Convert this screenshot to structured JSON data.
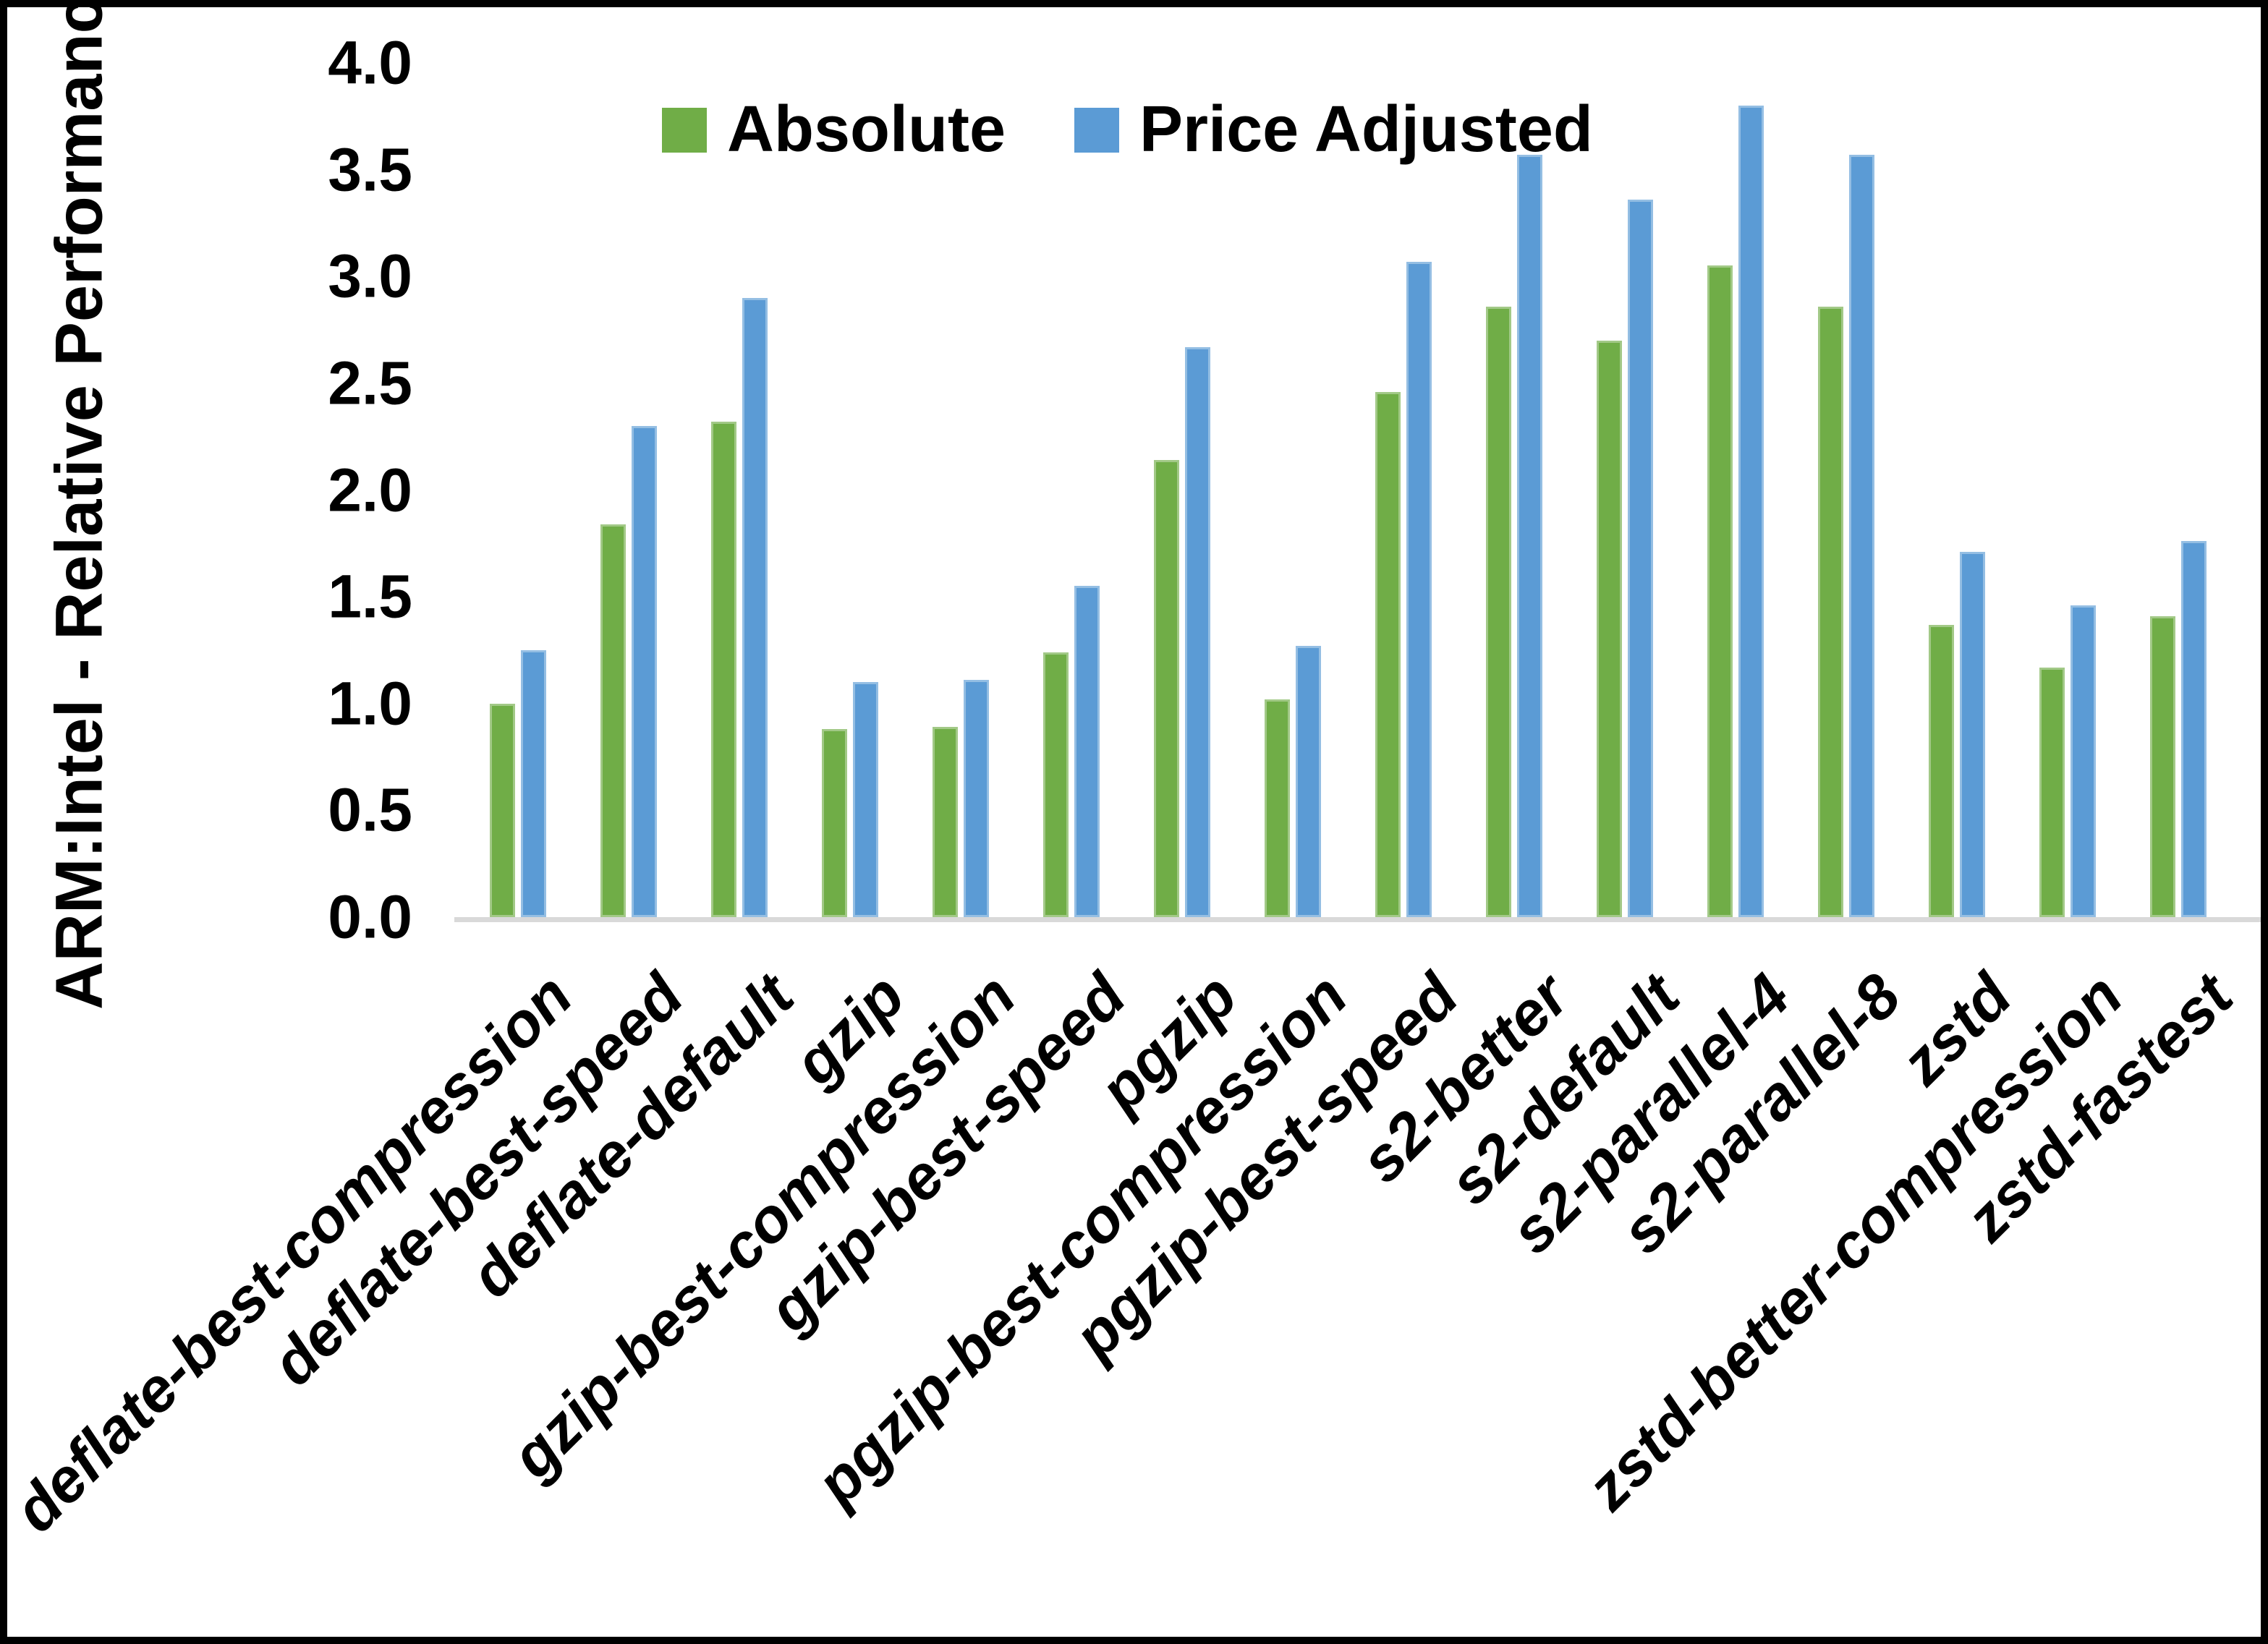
{
  "chart_data": {
    "type": "bar",
    "title": "",
    "xlabel": "",
    "ylabel": "ARM:Intel - Relative Performance",
    "ylim": [
      0.0,
      4.0
    ],
    "ytick_step": 0.5,
    "ytick_labels": [
      "0.0",
      "0.5",
      "1.0",
      "1.5",
      "2.0",
      "2.5",
      "3.0",
      "3.5",
      "4.0"
    ],
    "grid": false,
    "legend_position": "top",
    "categories": [
      "deflate-best-compression",
      "deflate-best-speed",
      "deflate-default",
      "gzip",
      "gzip-best-compression",
      "gzip-best-speed",
      "pgzip",
      "pgzip-best-compression",
      "pgzip-best-speed",
      "s2-better",
      "s2-default",
      "s2-parallel-4",
      "s2-parallel-8",
      "zstd",
      "zstd-better-compression",
      "zstd-fastest"
    ],
    "series": [
      {
        "name": "Absolute",
        "color": "#70AD47",
        "values": [
          1.0,
          1.84,
          2.32,
          0.88,
          0.89,
          1.24,
          2.14,
          1.02,
          2.46,
          2.86,
          2.7,
          3.05,
          2.86,
          1.37,
          1.17,
          1.41
        ]
      },
      {
        "name": "Price Adjusted",
        "color": "#5B9BD5",
        "values": [
          1.25,
          2.3,
          2.9,
          1.1,
          1.11,
          1.55,
          2.67,
          1.27,
          3.07,
          3.57,
          3.36,
          3.8,
          3.57,
          1.71,
          1.46,
          1.76
        ]
      }
    ]
  },
  "colors": {
    "background": "#FFFFFF",
    "border": "#000000",
    "axis_line": "#D9D9D9",
    "text": "#000000"
  }
}
